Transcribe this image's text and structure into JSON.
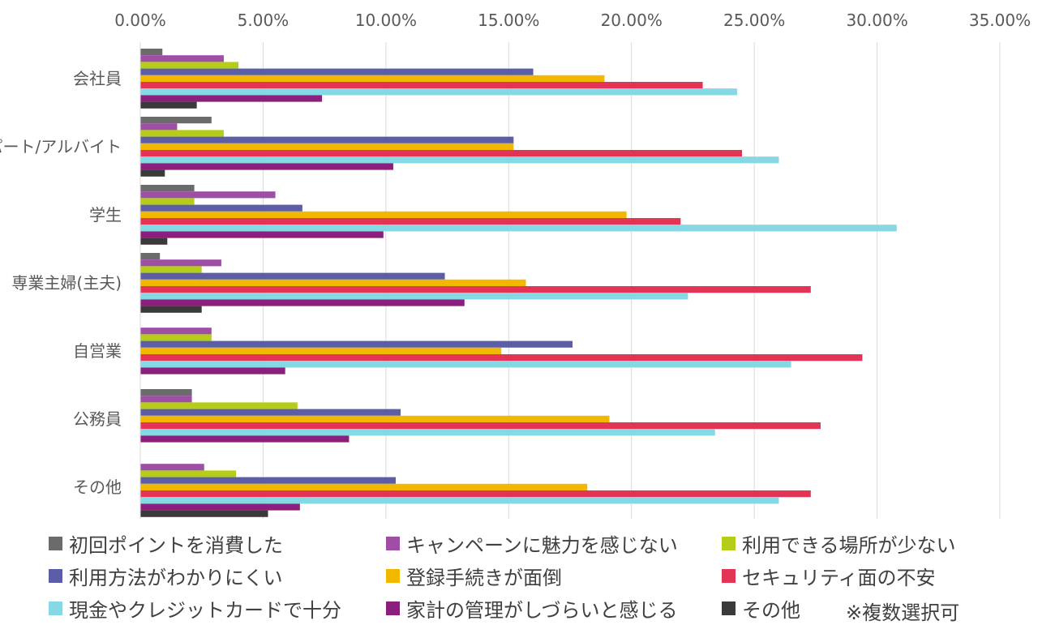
{
  "chart_data": {
    "type": "bar",
    "orientation": "horizontal",
    "title": "",
    "xlabel": "",
    "ylabel": "",
    "xlim": [
      0,
      35
    ],
    "grid": true,
    "x_tick_labels": [
      "0.00%",
      "5.00%",
      "10.00%",
      "15.00%",
      "20.00%",
      "25.00%",
      "30.00%",
      "35.00%"
    ],
    "categories": [
      "会社員",
      "パート/アルバイト",
      "学生",
      "専業主婦(主夫)",
      "自営業",
      "公務員",
      "その他"
    ],
    "series": [
      {
        "name": "初回ポイントを消費した",
        "color": "#6b6b6b",
        "values": [
          0.9,
          2.9,
          2.2,
          0.8,
          0,
          2.1,
          0
        ]
      },
      {
        "name": "キャンペーンに魅力を感じない",
        "color": "#9e4fa5",
        "values": [
          3.4,
          1.5,
          5.5,
          3.3,
          2.9,
          2.1,
          2.6
        ]
      },
      {
        "name": "利用できる場所が少ない",
        "color": "#b5cc18",
        "values": [
          4.0,
          3.4,
          2.2,
          2.5,
          2.9,
          6.4,
          3.9
        ]
      },
      {
        "name": "利用方法がわかりにくい",
        "color": "#5b5ea6",
        "values": [
          16.0,
          15.2,
          6.6,
          12.4,
          17.6,
          10.6,
          10.4
        ]
      },
      {
        "name": "登録手続きが面倒",
        "color": "#f2b800",
        "values": [
          18.9,
          15.2,
          19.8,
          15.7,
          14.7,
          19.1,
          18.2
        ]
      },
      {
        "name": "セキュリティ面の不安",
        "color": "#e33455",
        "values": [
          22.9,
          24.5,
          22.0,
          27.3,
          29.4,
          27.7,
          27.3
        ]
      },
      {
        "name": "現金やクレジットカードで十分",
        "color": "#86d8e5",
        "values": [
          24.3,
          26.0,
          30.8,
          22.3,
          26.5,
          23.4,
          26.0
        ]
      },
      {
        "name": "家計の管理がしづらいと感じる",
        "color": "#8b1f7e",
        "values": [
          7.4,
          10.3,
          9.9,
          13.2,
          5.9,
          8.5,
          6.5
        ]
      },
      {
        "name": "その他",
        "color": "#3a3a3a",
        "values": [
          2.3,
          1.0,
          1.1,
          2.5,
          0,
          0,
          5.2
        ]
      }
    ],
    "legend_position": "bottom",
    "note": "※複数選択可"
  }
}
